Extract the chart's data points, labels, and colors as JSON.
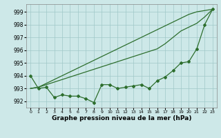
{
  "line_smooth1": [
    993.0,
    993.1,
    993.4,
    993.7,
    994.0,
    994.3,
    994.6,
    994.9,
    995.2,
    995.5,
    995.8,
    996.1,
    996.4,
    996.7,
    997.0,
    997.3,
    997.6,
    997.9,
    998.2,
    998.5,
    998.8,
    999.0,
    999.1,
    999.2
  ],
  "line_smooth2": [
    993.0,
    993.1,
    993.3,
    993.5,
    993.7,
    993.9,
    994.1,
    994.3,
    994.5,
    994.7,
    994.9,
    995.1,
    995.3,
    995.5,
    995.7,
    995.9,
    996.1,
    996.5,
    997.0,
    997.5,
    997.8,
    998.1,
    998.6,
    999.2
  ],
  "line_wiggly": [
    994.0,
    993.0,
    993.1,
    992.3,
    992.5,
    992.4,
    992.4,
    992.2,
    991.9,
    993.3,
    993.3,
    993.0,
    993.1,
    993.2,
    993.3,
    993.0,
    993.6,
    993.9,
    994.4,
    995.0,
    995.1,
    996.1,
    998.0,
    999.2
  ],
  "x": [
    0,
    1,
    2,
    3,
    4,
    5,
    6,
    7,
    8,
    9,
    10,
    11,
    12,
    13,
    14,
    15,
    16,
    17,
    18,
    19,
    20,
    21,
    22,
    23
  ],
  "ylim": [
    991.5,
    999.6
  ],
  "yticks": [
    992,
    993,
    994,
    995,
    996,
    997,
    998,
    999
  ],
  "xticks": [
    0,
    1,
    2,
    3,
    4,
    5,
    6,
    7,
    8,
    9,
    10,
    11,
    12,
    13,
    14,
    15,
    16,
    17,
    18,
    19,
    20,
    21,
    22,
    23
  ],
  "xlabel": "Graphe pression niveau de la mer (hPa)",
  "line_color": "#2d6e2d",
  "bg_color": "#cde8e8",
  "grid_color": "#a0c8c8",
  "marker": "D",
  "marker_size": 2.0,
  "linewidth": 0.9
}
